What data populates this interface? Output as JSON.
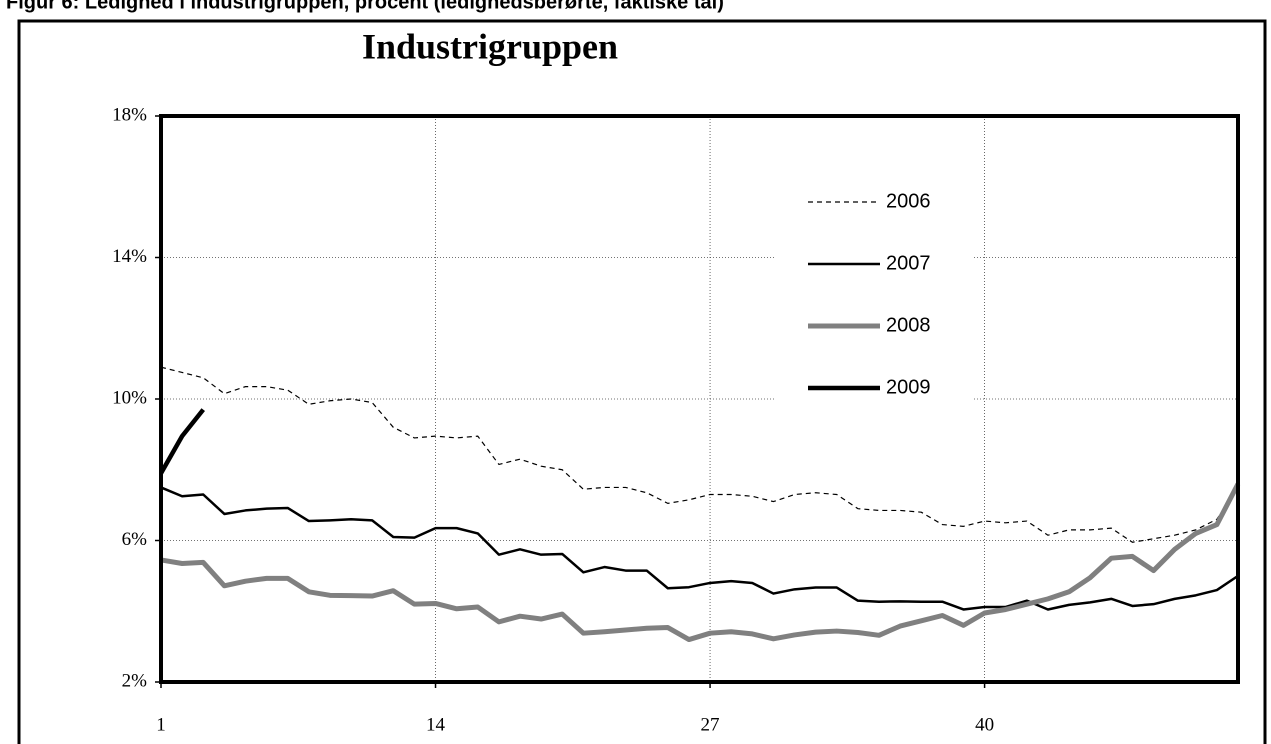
{
  "chart_data": {
    "type": "line",
    "subtitle": "Figur 6: Ledighed i industrigruppen, procent (ledighedsberørte, faktiske tal)",
    "title": "Industrigruppen",
    "x": [
      1,
      2,
      3,
      4,
      5,
      6,
      7,
      8,
      9,
      10,
      11,
      12,
      13,
      14,
      15,
      16,
      17,
      18,
      19,
      20,
      21,
      22,
      23,
      24,
      25,
      26,
      27,
      28,
      29,
      30,
      31,
      32,
      33,
      34,
      35,
      36,
      37,
      38,
      39,
      40,
      41,
      42,
      43,
      44,
      45,
      46,
      47,
      48,
      49,
      50,
      51,
      52
    ],
    "xlim": [
      1,
      52
    ],
    "xticks": [
      1,
      14,
      27,
      40
    ],
    "ylim": [
      2,
      18
    ],
    "yticks": [
      {
        "value": 2,
        "label": "2%"
      },
      {
        "value": 6,
        "label": "6%"
      },
      {
        "value": 10,
        "label": "10%"
      },
      {
        "value": 14,
        "label": "14%"
      },
      {
        "value": 18,
        "label": "18%"
      }
    ],
    "grid": true,
    "legend": "upper right",
    "series": [
      {
        "name": "2006",
        "color": "#000000",
        "width": 1.2,
        "dashed": true,
        "values": [
          10.9,
          10.75,
          10.6,
          10.15,
          10.35,
          10.35,
          10.25,
          9.85,
          9.95,
          10.0,
          9.9,
          9.2,
          8.9,
          8.95,
          8.9,
          8.95,
          8.15,
          8.3,
          8.1,
          8.0,
          7.45,
          7.5,
          7.5,
          7.35,
          7.05,
          7.15,
          7.3,
          7.3,
          7.25,
          7.1,
          7.3,
          7.35,
          7.3,
          6.9,
          6.85,
          6.85,
          6.8,
          6.45,
          6.4,
          6.55,
          6.5,
          6.55,
          6.15,
          6.3,
          6.3,
          6.35,
          5.95,
          6.05,
          6.15,
          6.3,
          6.6,
          7.5
        ]
      },
      {
        "name": "2007",
        "color": "#000000",
        "width": 2.5,
        "dashed": false,
        "values": [
          7.5,
          7.25,
          7.3,
          6.75,
          6.85,
          6.9,
          6.92,
          6.55,
          6.57,
          6.6,
          6.57,
          6.1,
          6.08,
          6.35,
          6.35,
          6.2,
          5.6,
          5.75,
          5.6,
          5.62,
          5.1,
          5.25,
          5.15,
          5.15,
          4.65,
          4.68,
          4.8,
          4.85,
          4.8,
          4.5,
          4.62,
          4.67,
          4.67,
          4.3,
          4.27,
          4.28,
          4.27,
          4.27,
          4.05,
          4.12,
          4.12,
          4.3,
          4.05,
          4.18,
          4.25,
          4.35,
          4.15,
          4.2,
          4.35,
          4.45,
          4.6,
          5.0
        ]
      },
      {
        "name": "2008",
        "color": "#808080",
        "width": 5,
        "dashed": false,
        "values": [
          5.45,
          5.35,
          5.38,
          4.72,
          4.85,
          4.93,
          4.93,
          4.55,
          4.45,
          4.44,
          4.43,
          4.58,
          4.2,
          4.22,
          4.07,
          4.12,
          3.7,
          3.86,
          3.78,
          3.92,
          3.38,
          3.42,
          3.47,
          3.52,
          3.54,
          3.2,
          3.38,
          3.42,
          3.36,
          3.22,
          3.33,
          3.41,
          3.44,
          3.4,
          3.32,
          3.58,
          3.73,
          3.88,
          3.6,
          3.95,
          4.05,
          4.2,
          4.35,
          4.55,
          4.95,
          5.5,
          5.55,
          5.15,
          5.75,
          6.2,
          6.45,
          7.6
        ]
      },
      {
        "name": "2009",
        "color": "#000000",
        "width": 4.5,
        "dashed": false,
        "values": [
          7.9,
          8.95,
          9.7,
          null,
          null,
          null,
          null,
          null,
          null,
          null,
          null,
          null,
          null,
          null,
          null,
          null,
          null,
          null,
          null,
          null,
          null,
          null,
          null,
          null,
          null,
          null,
          null,
          null,
          null,
          null,
          null,
          null,
          null,
          null,
          null,
          null,
          null,
          null,
          null,
          null,
          null,
          null,
          null,
          null,
          null,
          null,
          null,
          null,
          null,
          null,
          null,
          null
        ]
      }
    ]
  }
}
